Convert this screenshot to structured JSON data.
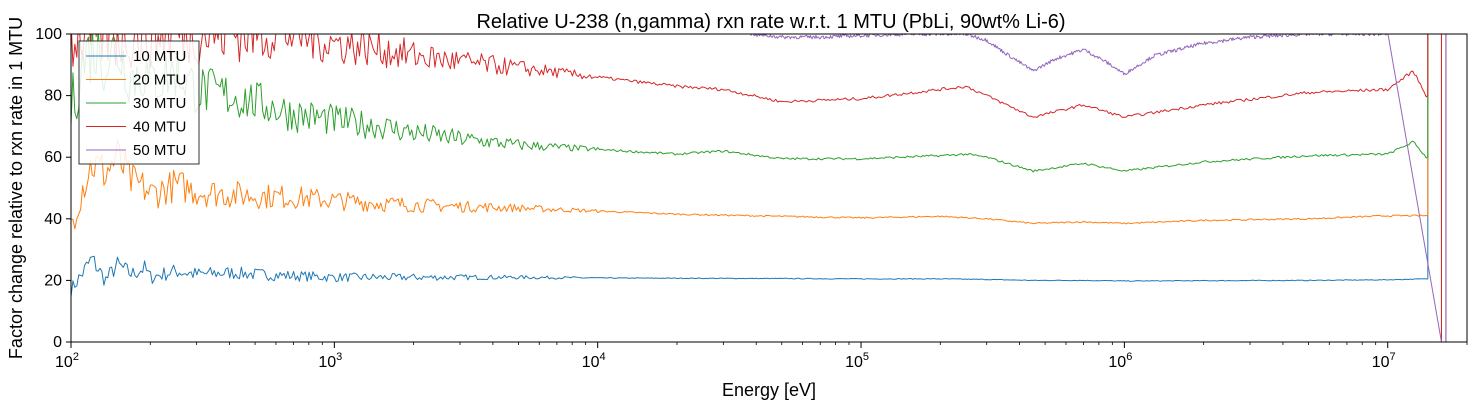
{
  "chart_data": {
    "type": "line",
    "title": "Relative U-238 (n,gamma) rxn rate w.r.t. 1 MTU (PbLi, 90wt% Li-6)",
    "xlabel": "Energy [eV]",
    "ylabel": "Factor change relative to rxn rate in 1 MTU",
    "xscale": "log",
    "xlim": [
      100,
      20000000
    ],
    "ylim": [
      0,
      100
    ],
    "yticks": [
      0,
      20,
      40,
      60,
      80,
      100
    ],
    "xticks": [
      {
        "base": "10",
        "exp": "2"
      },
      {
        "base": "10",
        "exp": "3"
      },
      {
        "base": "10",
        "exp": "4"
      },
      {
        "base": "10",
        "exp": "5"
      },
      {
        "base": "10",
        "exp": "6"
      },
      {
        "base": "10",
        "exp": "7"
      }
    ],
    "grid": false,
    "legend_position": "upper-left",
    "cutoff_energy": 14200000,
    "drop_energy": 16000000,
    "series": [
      {
        "name": "10 MTU",
        "color": "#1f77b4",
        "x": [
          100,
          110,
          120,
          135,
          150,
          170,
          190,
          200,
          250,
          300,
          400,
          500,
          700,
          1000,
          1500,
          2000,
          3000,
          5000,
          10000,
          20000,
          50000,
          100000,
          200000,
          300000,
          450000,
          700000,
          1000000,
          2000000,
          5000000,
          10000000,
          14000000
        ],
        "y": [
          17,
          22,
          27,
          20,
          25,
          22,
          24,
          21,
          23,
          22,
          22.5,
          22,
          21.5,
          21,
          21,
          21,
          21,
          21,
          20.8,
          20.7,
          20.6,
          20.5,
          20.5,
          20.3,
          20,
          20,
          19.8,
          19.9,
          20,
          20.2,
          20.5
        ]
      },
      {
        "name": "20 MTU",
        "color": "#ff7f0e",
        "x": [
          100,
          110,
          120,
          135,
          150,
          170,
          190,
          200,
          250,
          300,
          400,
          500,
          700,
          1000,
          1500,
          2000,
          3000,
          5000,
          10000,
          20000,
          50000,
          100000,
          200000,
          300000,
          450000,
          700000,
          1000000,
          2000000,
          5000000,
          10000000,
          14000000
        ],
        "y": [
          38,
          50,
          58,
          55,
          60,
          52,
          50,
          48,
          51,
          49,
          48,
          47.5,
          47,
          46,
          45,
          44.5,
          44,
          43.5,
          42.5,
          41.5,
          40.8,
          40.3,
          40.8,
          40,
          38.5,
          39,
          38.5,
          39.5,
          40,
          41,
          41
        ]
      },
      {
        "name": "30 MTU",
        "color": "#2ca02c",
        "x": [
          100,
          110,
          120,
          135,
          150,
          170,
          190,
          200,
          250,
          300,
          400,
          500,
          700,
          1000,
          1500,
          2000,
          3000,
          5000,
          10000,
          20000,
          30000,
          50000,
          100000,
          200000,
          250000,
          300000,
          450000,
          700000,
          1000000,
          2000000,
          5000000,
          10000000,
          12500000,
          14000000
        ],
        "y": [
          75,
          90,
          96,
          92,
          95,
          86,
          88,
          84,
          88,
          82,
          80,
          78,
          74,
          72,
          70,
          68,
          66,
          64,
          62.5,
          61,
          62,
          59.5,
          59.5,
          60.5,
          61,
          60,
          55.5,
          58,
          55.5,
          58.5,
          60.5,
          61,
          65,
          60
        ]
      },
      {
        "name": "40 MTU",
        "color": "#d62728",
        "x": [
          100,
          110,
          120,
          135,
          150,
          170,
          190,
          200,
          250,
          300,
          400,
          500,
          700,
          1000,
          1500,
          2000,
          3000,
          5000,
          10000,
          20000,
          30000,
          50000,
          100000,
          200000,
          250000,
          300000,
          450000,
          700000,
          1000000,
          2000000,
          5000000,
          10000000,
          12500000,
          14000000
        ],
        "y": [
          100,
          100,
          100,
          100,
          100,
          100,
          100,
          100,
          100,
          100,
          100,
          100,
          100,
          97,
          95,
          93,
          91,
          89,
          86,
          83,
          82,
          78,
          79,
          82,
          83,
          80,
          73,
          77,
          73,
          77,
          81,
          82,
          88,
          80
        ]
      },
      {
        "name": "50 MTU",
        "color": "#9467bd",
        "x": [
          38000,
          50000,
          70000,
          100000,
          150000,
          200000,
          250000,
          300000,
          350000,
          450000,
          550000,
          700000,
          850000,
          1000000,
          1300000,
          2000000,
          3000000,
          5000000,
          7000000,
          10000000
        ],
        "y": [
          100,
          99,
          99,
          99.5,
          100,
          100,
          100,
          98,
          94,
          88,
          92,
          95,
          91,
          87,
          93,
          97,
          99,
          100,
          100,
          100
        ]
      }
    ]
  }
}
